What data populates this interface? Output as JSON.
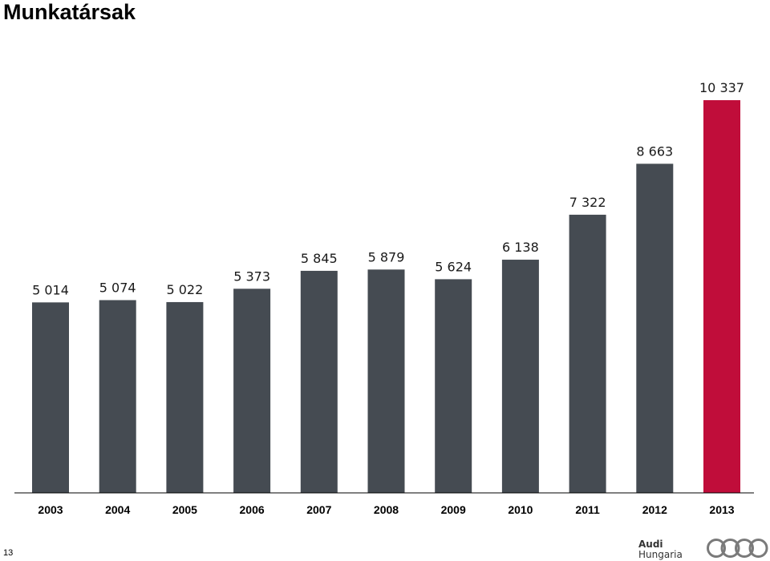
{
  "page": {
    "title": "Munkatársak",
    "page_number": "13",
    "brand_line1": "Audi",
    "brand_line2": "Hungaria",
    "logo_icon": "audi-rings-icon"
  },
  "colors": {
    "bar": "#454B52",
    "highlight": "#C00D3A"
  },
  "chart_data": {
    "type": "bar",
    "categories": [
      "2003",
      "2004",
      "2005",
      "2006",
      "2007",
      "2008",
      "2009",
      "2010",
      "2011",
      "2012",
      "2013"
    ],
    "values": [
      5014,
      5074,
      5022,
      5373,
      5845,
      5879,
      5624,
      6138,
      7322,
      8663,
      10337
    ],
    "value_labels": [
      "5 014",
      "5 074",
      "5 022",
      "5 373",
      "5 845",
      "5 879",
      "5 624",
      "6 138",
      "7 322",
      "8 663",
      "10 337"
    ],
    "highlight_category": "2013",
    "title": "",
    "xlabel": "",
    "ylabel": "",
    "ylim": [
      0,
      10337
    ],
    "grid": false,
    "legend": "none"
  }
}
